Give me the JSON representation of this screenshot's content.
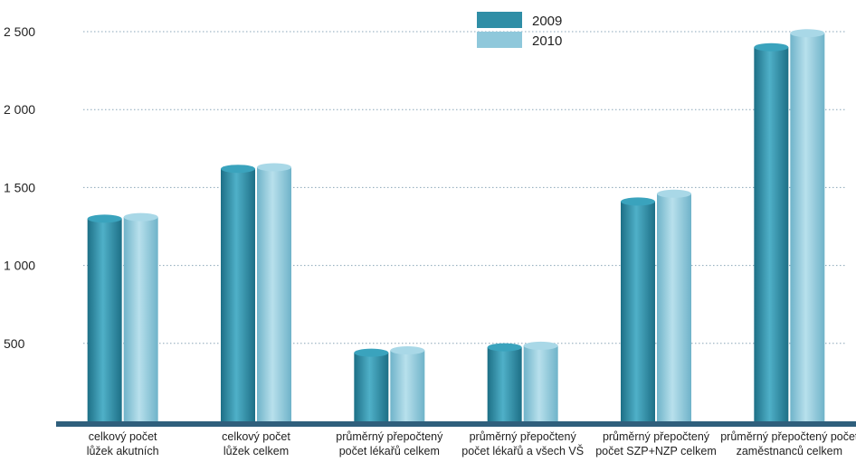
{
  "chart_data": {
    "type": "bar",
    "categories": [
      [
        "celkový počet",
        "lůžek akutních"
      ],
      [
        "celkový počet",
        "lůžek celkem"
      ],
      [
        "průměrný přepočtený",
        "počet lékařů celkem"
      ],
      [
        "průměrný přepočtený",
        "počet lékařů a všech VŠ"
      ],
      [
        "průměrný přepočtený",
        "počet SZP+NZP celkem"
      ],
      [
        "průměrný přepočtený počet",
        "zaměstnanců celkem"
      ]
    ],
    "series": [
      {
        "name": "2009",
        "values": [
          1300,
          1620,
          440,
          475,
          1410,
          2400
        ],
        "color": "#2f8ea6"
      },
      {
        "name": "2010",
        "values": [
          1310,
          1630,
          455,
          485,
          1460,
          2490
        ],
        "color": "#8fc8db"
      }
    ],
    "yticks": [
      {
        "value": 500,
        "label": "500"
      },
      {
        "value": 1000,
        "label": "1 000"
      },
      {
        "value": 1500,
        "label": "1 500"
      },
      {
        "value": 2000,
        "label": "2 000"
      },
      {
        "value": 2500,
        "label": "2 500"
      }
    ],
    "ylim": [
      0,
      2500
    ],
    "grid": true,
    "legend_position": "top-center",
    "baseline_color": "#2f5f7c"
  }
}
